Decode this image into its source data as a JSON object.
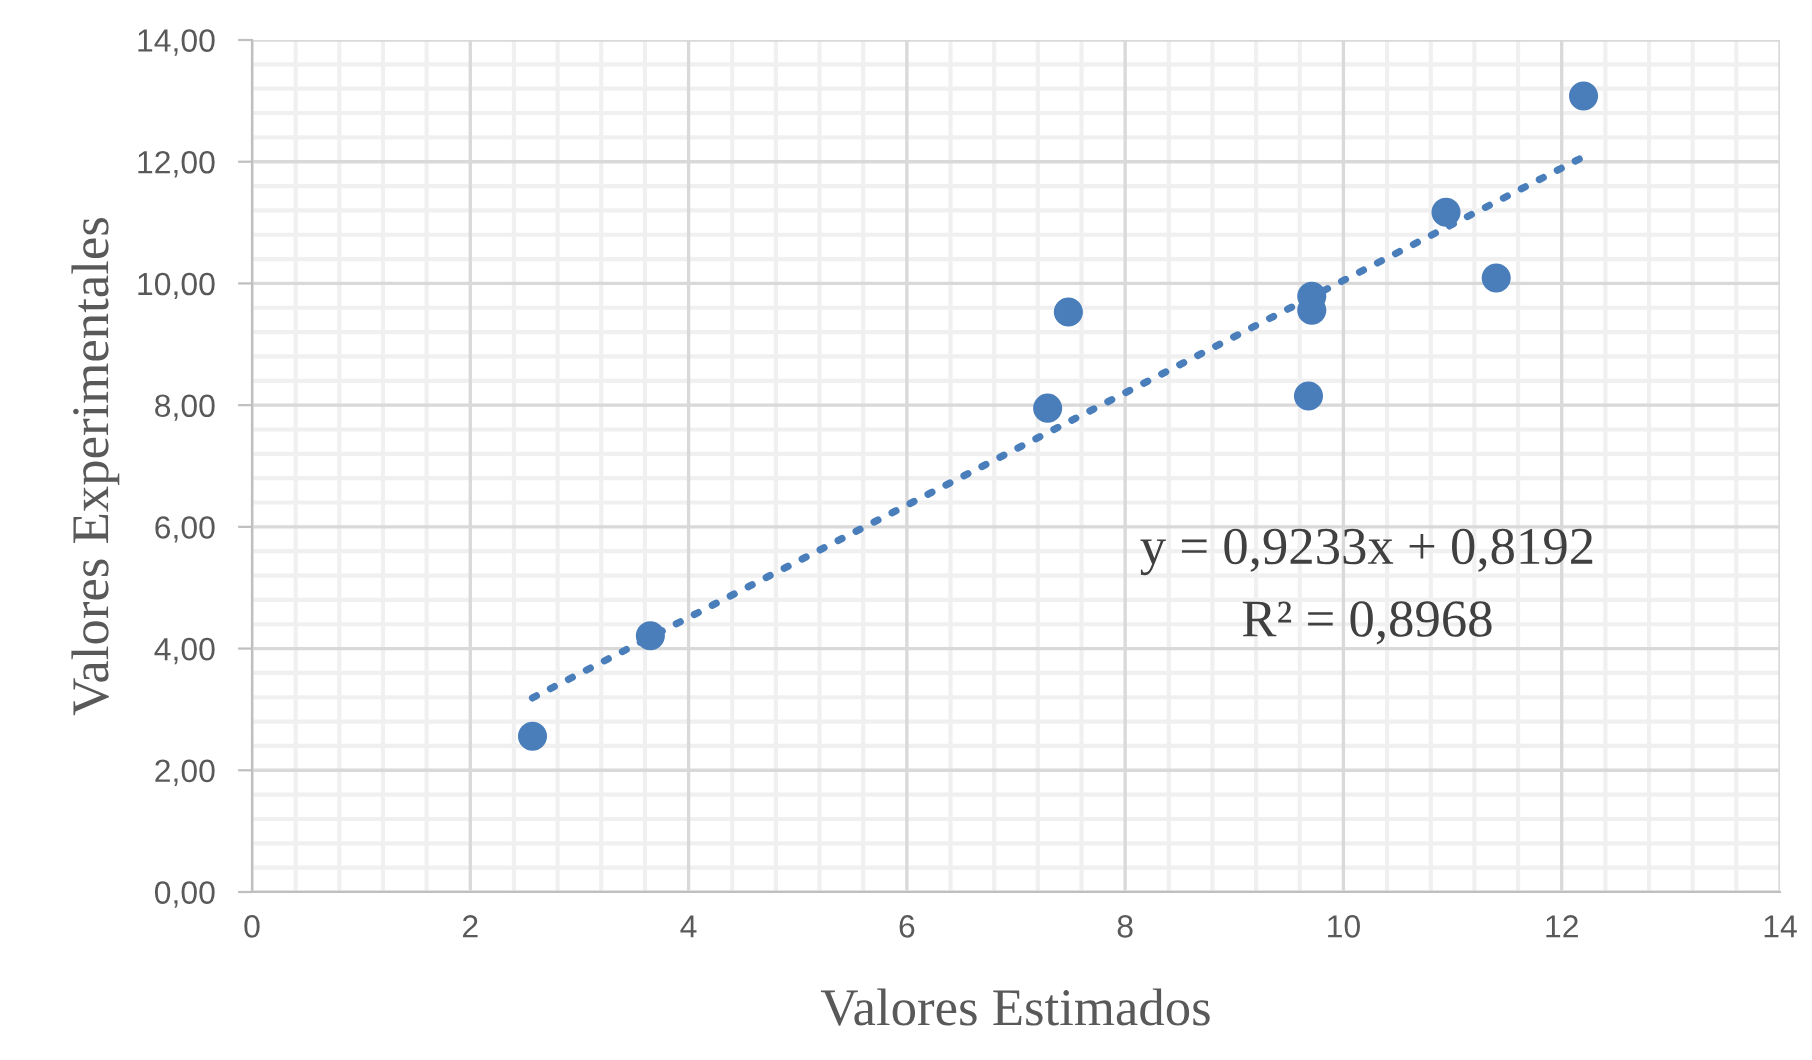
{
  "chart_data": {
    "type": "scatter",
    "xlabel": "Valores Estimados",
    "ylabel": "Valores Experimentales",
    "xlim": [
      0,
      14
    ],
    "xticks": [
      0,
      2,
      4,
      6,
      8,
      10,
      12,
      14
    ],
    "ylim": [
      0,
      14
    ],
    "yticks": [
      {
        "value": 0,
        "label": "0,00"
      },
      {
        "value": 2,
        "label": "2,00"
      },
      {
        "value": 4,
        "label": "4,00"
      },
      {
        "value": 6,
        "label": "6,00"
      },
      {
        "value": 8,
        "label": "8,00"
      },
      {
        "value": 10,
        "label": "10,00"
      },
      {
        "value": 12,
        "label": "12,00"
      },
      {
        "value": 14,
        "label": "14,00"
      }
    ],
    "grid": true,
    "legend": false,
    "series": [
      {
        "marker": "circle",
        "color": "#4a7ebb",
        "x": [
          2.57,
          3.65,
          7.29,
          7.48,
          9.68,
          9.71,
          9.71,
          10.94,
          11.4,
          12.2
        ],
        "values": [
          2.56,
          4.21,
          7.95,
          9.53,
          8.15,
          9.79,
          9.56,
          11.17,
          10.09,
          13.08
        ]
      },
      {
        "type": "line",
        "color": "#4a7ebb",
        "line_style": "dotted",
        "x": [
          2.57,
          12.2
        ],
        "values": [
          3.19,
          12.08
        ]
      }
    ],
    "annotations": [
      "y = 0,9233x + 0,8192",
      "R² = 0,8968"
    ]
  }
}
